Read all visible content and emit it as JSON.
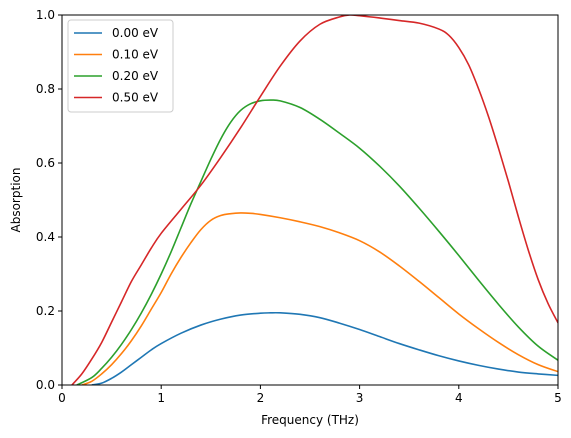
{
  "chart_data": {
    "type": "line",
    "title": "",
    "xlabel": "Frequency (THz)",
    "ylabel": "Absorption",
    "xlim": [
      0,
      5
    ],
    "ylim": [
      0,
      1.0
    ],
    "xticks": [
      0,
      1,
      2,
      3,
      4,
      5
    ],
    "yticks": [
      0.0,
      0.2,
      0.4,
      0.6,
      0.8,
      1.0
    ],
    "xtick_labels": [
      "0",
      "1",
      "2",
      "3",
      "4",
      "5"
    ],
    "ytick_labels": [
      "0.0",
      "0.2",
      "0.4",
      "0.6",
      "0.8",
      "1.0"
    ],
    "grid": false,
    "legend": "top-left",
    "series": [
      {
        "name": "0.00 eV",
        "color": "#1f77b4",
        "x": [
          0.3,
          0.4,
          0.5,
          0.6,
          0.7,
          0.8,
          0.9,
          1.0,
          1.2,
          1.4,
          1.6,
          1.8,
          2.0,
          2.1,
          2.2,
          2.4,
          2.6,
          2.8,
          3.0,
          3.2,
          3.4,
          3.6,
          3.8,
          4.0,
          4.2,
          4.4,
          4.6,
          4.8,
          5.0
        ],
        "y": [
          0.0,
          0.005,
          0.018,
          0.035,
          0.055,
          0.075,
          0.095,
          0.112,
          0.14,
          0.162,
          0.178,
          0.189,
          0.194,
          0.195,
          0.195,
          0.191,
          0.182,
          0.167,
          0.15,
          0.131,
          0.112,
          0.095,
          0.079,
          0.065,
          0.053,
          0.043,
          0.035,
          0.03,
          0.026
        ]
      },
      {
        "name": "0.10 eV",
        "color": "#ff7f0e",
        "x": [
          0.2,
          0.3,
          0.4,
          0.5,
          0.6,
          0.7,
          0.8,
          0.9,
          1.0,
          1.1,
          1.2,
          1.3,
          1.4,
          1.5,
          1.6,
          1.7,
          1.8,
          1.9,
          2.0,
          2.2,
          2.4,
          2.6,
          2.8,
          3.0,
          3.2,
          3.4,
          3.6,
          3.8,
          4.0,
          4.2,
          4.4,
          4.6,
          4.8,
          5.0
        ],
        "y": [
          0.0,
          0.01,
          0.03,
          0.055,
          0.085,
          0.12,
          0.16,
          0.205,
          0.25,
          0.3,
          0.345,
          0.385,
          0.42,
          0.445,
          0.458,
          0.463,
          0.465,
          0.464,
          0.461,
          0.452,
          0.441,
          0.428,
          0.411,
          0.39,
          0.36,
          0.322,
          0.28,
          0.236,
          0.192,
          0.152,
          0.115,
          0.082,
          0.055,
          0.036
        ]
      },
      {
        "name": "0.20 eV",
        "color": "#2ca02c",
        "x": [
          0.15,
          0.3,
          0.4,
          0.5,
          0.6,
          0.7,
          0.8,
          0.9,
          1.0,
          1.1,
          1.2,
          1.3,
          1.4,
          1.5,
          1.6,
          1.7,
          1.8,
          1.9,
          2.0,
          2.1,
          2.2,
          2.4,
          2.6,
          2.8,
          3.0,
          3.2,
          3.4,
          3.6,
          3.8,
          4.0,
          4.2,
          4.4,
          4.6,
          4.8,
          5.0
        ],
        "y": [
          0.0,
          0.02,
          0.045,
          0.075,
          0.11,
          0.15,
          0.195,
          0.245,
          0.3,
          0.36,
          0.425,
          0.49,
          0.55,
          0.61,
          0.665,
          0.71,
          0.742,
          0.76,
          0.768,
          0.77,
          0.768,
          0.75,
          0.718,
          0.68,
          0.64,
          0.592,
          0.538,
          0.478,
          0.415,
          0.35,
          0.283,
          0.218,
          0.157,
          0.105,
          0.067
        ]
      },
      {
        "name": "0.50 eV",
        "color": "#d62728",
        "x": [
          0.1,
          0.2,
          0.3,
          0.4,
          0.5,
          0.6,
          0.7,
          0.8,
          0.9,
          1.0,
          1.2,
          1.4,
          1.6,
          1.8,
          2.0,
          2.2,
          2.4,
          2.6,
          2.8,
          2.9,
          3.0,
          3.2,
          3.4,
          3.6,
          3.8,
          3.9,
          4.0,
          4.1,
          4.2,
          4.3,
          4.4,
          4.5,
          4.6,
          4.7,
          4.8,
          4.9,
          5.0
        ],
        "y": [
          0.0,
          0.03,
          0.07,
          0.115,
          0.17,
          0.225,
          0.28,
          0.325,
          0.37,
          0.41,
          0.475,
          0.54,
          0.615,
          0.695,
          0.78,
          0.862,
          0.93,
          0.975,
          0.995,
          1.0,
          0.998,
          0.992,
          0.985,
          0.978,
          0.962,
          0.945,
          0.912,
          0.865,
          0.8,
          0.725,
          0.64,
          0.55,
          0.455,
          0.365,
          0.285,
          0.22,
          0.168
        ]
      }
    ]
  }
}
